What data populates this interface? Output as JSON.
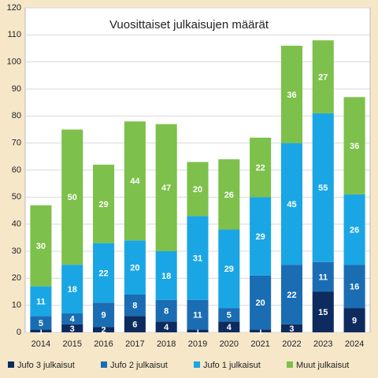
{
  "chart_data": {
    "type": "stacked_bar",
    "title": "Vuosittaiset julkaisujen määrät",
    "categories": [
      "2014",
      "2015",
      "2016",
      "2017",
      "2018",
      "2019",
      "2020",
      "2021",
      "2022",
      "2023",
      "2024"
    ],
    "series": [
      {
        "name": "Jufo 3 julkaisut",
        "color": "#0d2b5e",
        "values": [
          1,
          3,
          2,
          6,
          4,
          1,
          4,
          1,
          3,
          15,
          9
        ]
      },
      {
        "name": "Jufo 2 julkaisut",
        "color": "#1a6db3",
        "values": [
          5,
          4,
          9,
          8,
          8,
          11,
          5,
          20,
          22,
          11,
          16
        ]
      },
      {
        "name": "Jufo 1 julkaisut",
        "color": "#1aa6e4",
        "values": [
          11,
          18,
          22,
          20,
          18,
          31,
          29,
          29,
          45,
          55,
          26
        ]
      },
      {
        "name": "Muut julkaisut",
        "color": "#7dc04b",
        "values": [
          30,
          50,
          29,
          44,
          47,
          20,
          26,
          22,
          36,
          27,
          36
        ]
      }
    ],
    "ylim": [
      0,
      120
    ],
    "yticks": [
      0,
      10,
      20,
      30,
      40,
      50,
      60,
      70,
      80,
      90,
      100,
      110,
      120
    ],
    "grid": true,
    "legend": "bottom"
  }
}
